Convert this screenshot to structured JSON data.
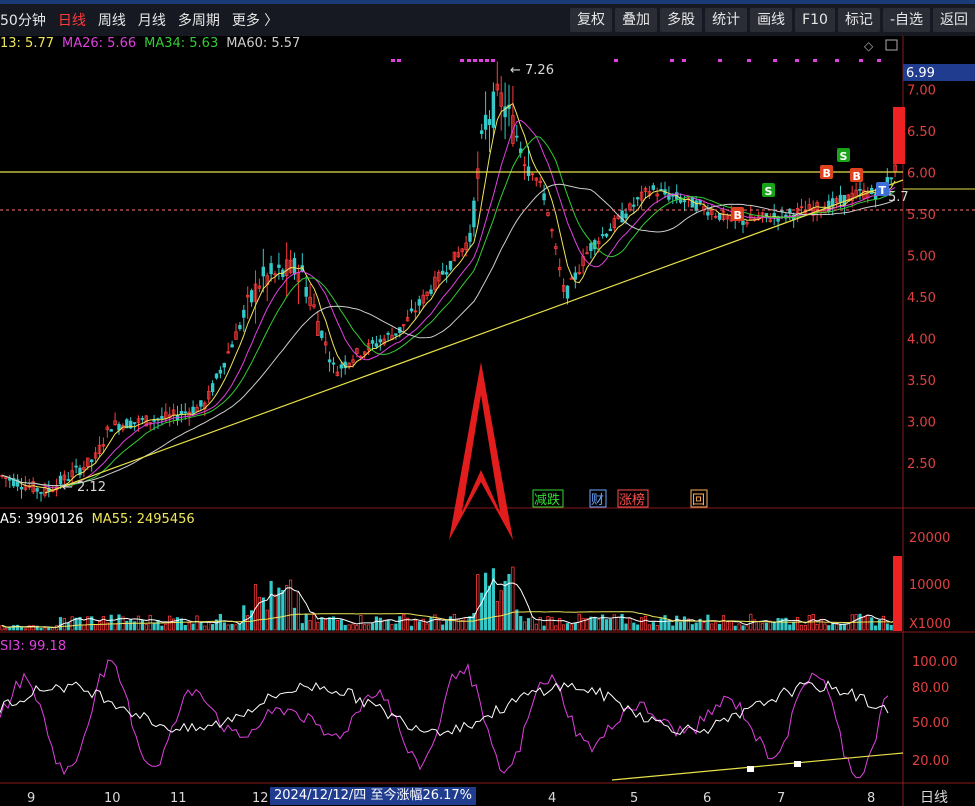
{
  "toolbar": {
    "period_items": [
      {
        "label": "50分钟",
        "active": false
      },
      {
        "label": "日线",
        "active": true
      },
      {
        "label": "周线",
        "active": false
      },
      {
        "label": "月线",
        "active": false
      },
      {
        "label": "多周期",
        "active": false
      },
      {
        "label": "更多 〉",
        "active": false
      }
    ],
    "buttons": [
      "复权",
      "叠加",
      "多股",
      "统计",
      "画线",
      "F10",
      "标记",
      "-自选",
      "返回"
    ]
  },
  "price_panel": {
    "ma_legend": [
      {
        "label": "13: 5.77",
        "color": "#f0e65a"
      },
      {
        "label": "MA26: 5.66",
        "color": "#e040e0"
      },
      {
        "label": "MA34: 5.63",
        "color": "#33cc33"
      },
      {
        "label": "MA60: 5.57",
        "color": "#cccccc"
      }
    ],
    "y_axis_labels": [
      "7.00",
      "6.50",
      "6.00",
      "5.50",
      "5.00",
      "4.50",
      "4.00",
      "3.50",
      "3.00",
      "2.50"
    ],
    "current_price": "6.99",
    "high_label": "7.26",
    "low_label": "2.12",
    "right_label": "5.7",
    "signals": [
      {
        "label": "S",
        "color": "#19a319"
      },
      {
        "label": "S",
        "color": "#19a319"
      },
      {
        "label": "B",
        "color": "#e0421f"
      },
      {
        "label": "B",
        "color": "#e0421f"
      },
      {
        "label": "B",
        "color": "#e0421f"
      },
      {
        "label": "T",
        "color": "#3d6fd8"
      }
    ],
    "event_tags": [
      {
        "label": "减跌",
        "color": "#33dd33"
      },
      {
        "label": "财",
        "color": "#6fa8ff"
      },
      {
        "label": "涨榜",
        "color": "#ff5050"
      },
      {
        "label": "回",
        "color": "#ffb060"
      }
    ]
  },
  "volume_panel": {
    "legend": [
      {
        "label": "A5: 3990126",
        "color": "#ffffff"
      },
      {
        "label": "MA55: 2495456",
        "color": "#f0e65a"
      }
    ],
    "y_axis_labels": [
      "20000",
      "10000",
      "X1000"
    ]
  },
  "indicator_panel": {
    "legend": {
      "label": "SI3: 99.18",
      "color": "#e040e0"
    },
    "y_axis_labels": [
      "100.00",
      "80.00",
      "50.00",
      "20.00"
    ]
  },
  "x_axis": {
    "labels": [
      "9",
      "10",
      "11",
      "12",
      "4",
      "5",
      "6",
      "7",
      "8"
    ],
    "date_tag": "2024/12/12/四  至今涨幅26.17%",
    "corner_label": "日线"
  },
  "colors": {
    "up": "#ff3b3b",
    "down": "#35c8c8",
    "ma13": "#f0e65a",
    "ma26": "#e040e0",
    "ma34": "#33cc33",
    "ma60": "#cccccc"
  }
}
